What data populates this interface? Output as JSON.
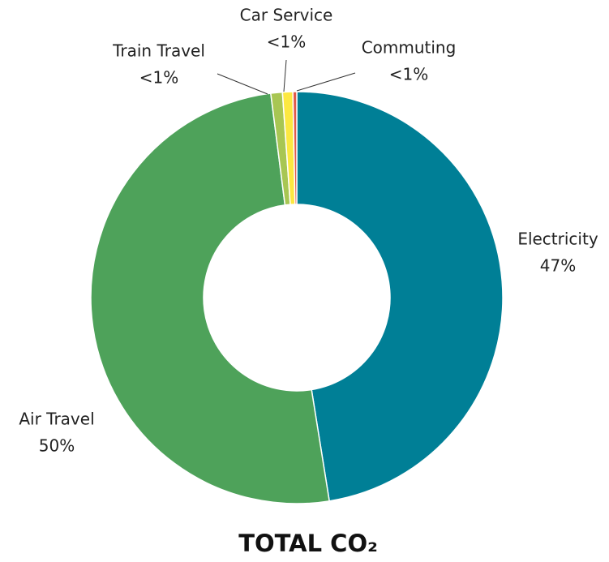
{
  "chart_data": {
    "type": "pie",
    "title": "TOTAL CO₂",
    "categories": [
      "Electricity",
      "Air Travel",
      "Train Travel",
      "Car Service",
      "Commuting"
    ],
    "values": [
      47,
      50,
      0.9,
      0.8,
      0.3
    ],
    "value_labels": [
      "47%",
      "50%",
      "<1%",
      "<1%",
      "<1%"
    ],
    "colors": [
      "#007f96",
      "#4ea25a",
      "#a8c653",
      "#fce841",
      "#e05a4a"
    ]
  }
}
